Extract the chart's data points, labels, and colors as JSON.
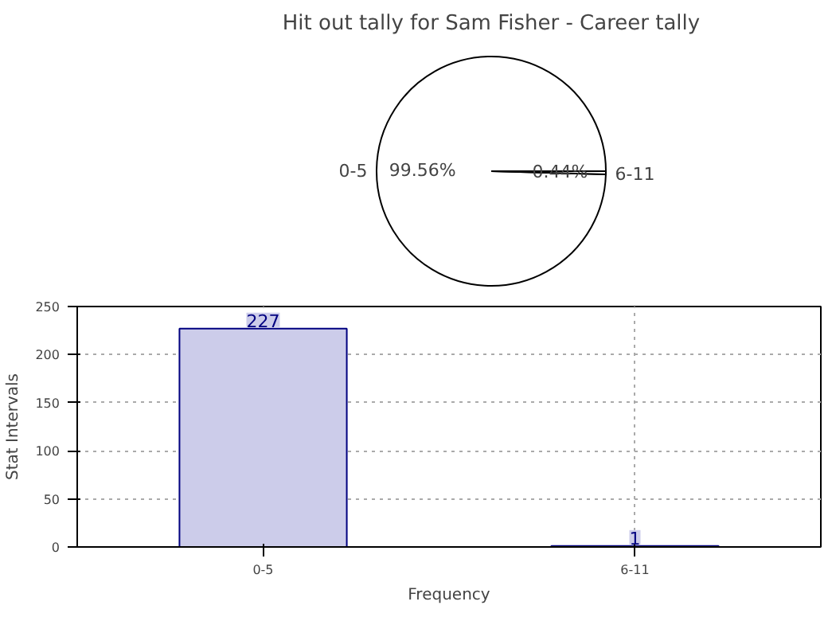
{
  "chart_data": [
    {
      "type": "pie",
      "title": "Hit out tally for Sam Fisher - Career tally",
      "categories": [
        "0-5",
        "6-11"
      ],
      "values": [
        99.56,
        0.44
      ],
      "colors": [
        "#ffffff",
        "#ffffff"
      ],
      "value_labels": [
        "99.56%",
        "0.44%"
      ]
    },
    {
      "type": "bar",
      "categories": [
        "0-5",
        "6-11"
      ],
      "values": [
        227,
        1
      ],
      "color": "#ccccea",
      "xlabel": "Frequency",
      "ylabel": "Stat Intervals",
      "ylim": [
        0,
        250
      ],
      "yticks": [
        0,
        50,
        100,
        150,
        200,
        250
      ],
      "grid": true,
      "data_labels": true
    }
  ]
}
